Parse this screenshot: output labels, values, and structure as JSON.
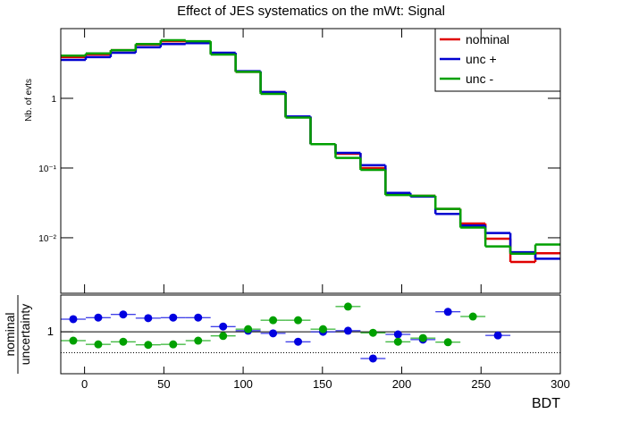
{
  "chart_data": [
    {
      "type": "histogram",
      "title": "Effect of JES systematics on the mWt: Signal",
      "ylabel": "Nb. of evts",
      "log_y": true,
      "legend": "top-right",
      "bins": [
        -15,
        0.75,
        16.5,
        32.25,
        48,
        63.75,
        79.5,
        95.25,
        111,
        126.75,
        142.5,
        158.25,
        174,
        189.75,
        205.5,
        221.25,
        237,
        252.75,
        268.5,
        284.25,
        300
      ],
      "xlim": [
        -15,
        300
      ],
      "ylim": [
        0.0016,
        10
      ],
      "yticks": [
        {
          "value": 1,
          "label": "1"
        },
        {
          "value": 0.1,
          "label": "10⁻¹"
        },
        {
          "value": 0.01,
          "label": "10⁻²"
        }
      ],
      "series": [
        {
          "name": "nominal",
          "color": "#e00000",
          "values": [
            3.9,
            4.25,
            4.9,
            5.9,
            6.6,
            6.4,
            4.4,
            2.4,
            1.23,
            0.54,
            0.22,
            0.16,
            0.1,
            0.042,
            0.04,
            0.026,
            0.016,
            0.0097,
            0.0045,
            0.006
          ]
        },
        {
          "name": "unc +",
          "color": "#0000d0",
          "values": [
            3.56,
            3.9,
            4.5,
            5.4,
            6.0,
            6.2,
            4.5,
            2.45,
            1.23,
            0.55,
            0.22,
            0.165,
            0.11,
            0.044,
            0.039,
            0.022,
            0.015,
            0.0117,
            0.0062,
            0.005
          ]
        },
        {
          "name": "unc -",
          "color": "#00a000",
          "values": [
            4.1,
            4.4,
            4.9,
            6.0,
            6.8,
            6.6,
            4.25,
            2.4,
            1.16,
            0.53,
            0.22,
            0.14,
            0.094,
            0.041,
            0.04,
            0.026,
            0.014,
            0.0075,
            0.0059,
            0.008
          ]
        }
      ]
    },
    {
      "type": "scatter",
      "ylabel": "nominal",
      "ylabel2": "uncertainty",
      "xlabel": "BDT",
      "x": [
        -7.125,
        8.625,
        24.375,
        40.125,
        55.875,
        71.625,
        87.375,
        103.125,
        118.875,
        134.625,
        150.375,
        166.125,
        181.875,
        197.625,
        213.375,
        229.125,
        244.875,
        260.625,
        276.375,
        292.125
      ],
      "xlim": [
        -15,
        300
      ],
      "ylim": [
        0.92,
        1.07
      ],
      "xticks": [
        0,
        50,
        100,
        150,
        200,
        250,
        300
      ],
      "yticks": [
        1
      ],
      "reference_lines": [
        1,
        0.96
      ],
      "series": [
        {
          "color": "#0000e0",
          "values": [
            1.024,
            1.027,
            1.033,
            1.026,
            1.027,
            1.027,
            1.01,
            1.002,
            0.997,
            0.981,
            1.0,
            1.002,
            0.949,
            0.995,
            0.985,
            1.038,
            null,
            0.993,
            null,
            null
          ]
        },
        {
          "color": "#00a000",
          "values": [
            0.983,
            0.976,
            0.981,
            0.975,
            0.976,
            0.983,
            0.992,
            1.005,
            1.022,
            1.022,
            1.005,
            1.048,
            0.998,
            0.981,
            0.988,
            0.98,
            1.029,
            null,
            null,
            null
          ]
        }
      ]
    }
  ]
}
